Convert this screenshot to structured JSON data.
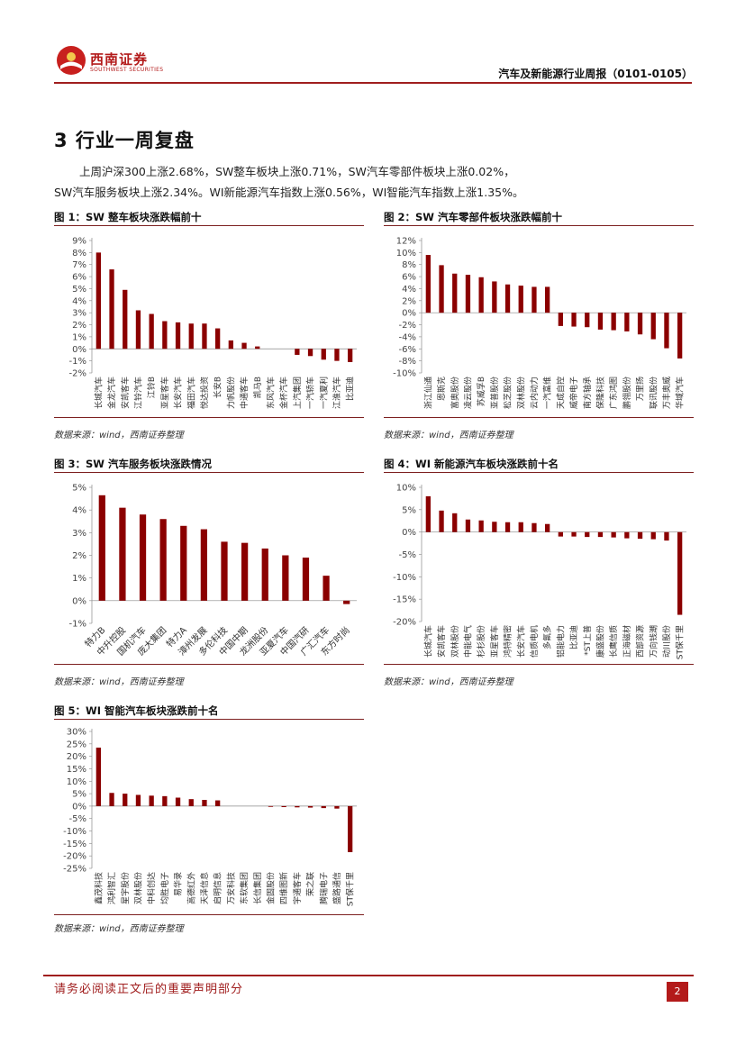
{
  "brand": {
    "name_cn": "西南证券",
    "name_en": "SOUTHWEST SECURITIES"
  },
  "header": {
    "title": "汽车及新能源行业周报（0101-0105）"
  },
  "section": {
    "heading": "3 行业一周复盘",
    "summary_line1": "上周沪深300上涨2.68%，SW整车板块上涨0.71%，SW汽车零部件板块上涨0.02%，",
    "summary_line2": "SW汽车服务板块上涨2.34%。WI新能源汽车指数上涨0.56%，WI智能汽车指数上涨1.35%。"
  },
  "figures": [
    {
      "title": "图 1：SW 整车板块涨跌幅前十",
      "source": "数据来源：wind，西南证券整理"
    },
    {
      "title": "图 2：SW 汽车零部件板块涨跌幅前十",
      "source": "数据来源：wind，西南证券整理"
    },
    {
      "title": "图 3：SW 汽车服务板块涨跌情况",
      "source": "数据来源：wind，西南证券整理"
    },
    {
      "title": "图 4：WI 新能源汽车板块涨跌前十名",
      "source": "数据来源：wind，西南证券整理"
    },
    {
      "title": "图 5：WI 智能汽车板块涨跌前十名",
      "source": "数据来源：wind，西南证券整理"
    }
  ],
  "colors": {
    "bar": "#8b0000",
    "accent": "#a01e1e"
  },
  "footer": {
    "note": "请务必阅读正文后的重要声明部分",
    "page": "2"
  },
  "chart_data": [
    {
      "type": "bar",
      "title": "图 1：SW 整车板块涨跌幅前十",
      "categories": [
        "长城汽车",
        "金龙汽车",
        "安凯客车",
        "江铃汽车",
        "江铃B",
        "亚星客车",
        "长安汽车",
        "福田汽车",
        "悦达投资",
        "长安B",
        "力帆股份",
        "中通客车",
        "凯马B",
        "东风汽车",
        "金杯汽车",
        "上汽集团",
        "一汽轿车",
        "一汽夏利",
        "江淮汽车",
        "比亚迪"
      ],
      "values": [
        8.0,
        6.6,
        4.9,
        3.2,
        2.9,
        2.3,
        2.2,
        2.1,
        2.1,
        1.7,
        0.7,
        0.5,
        0.2,
        0,
        0,
        -0.5,
        -0.6,
        -0.9,
        -1.0,
        -1.1
      ],
      "ylim": [
        -2,
        9
      ],
      "ticks": [
        -2,
        -1,
        0,
        1,
        2,
        3,
        4,
        5,
        6,
        7,
        8,
        9
      ],
      "tick_labels": [
        "-2%",
        "-1%",
        "0%",
        "1%",
        "2%",
        "3%",
        "4%",
        "5%",
        "6%",
        "7%",
        "8%",
        "9%"
      ]
    },
    {
      "type": "bar",
      "title": "图 2：SW 汽车零部件板块涨跌幅前十",
      "categories": [
        "浙江仙通",
        "恩斯克",
        "富奥股份",
        "凌云股份",
        "苏威孚B",
        "亚普股份",
        "松芝股份",
        "双林股份",
        "云内动力",
        "一汽富维",
        "天成自控",
        "威帝电子",
        "南方轴承",
        "保隆科技",
        "广东鸿图",
        "鹏翎股份",
        "万里扬",
        "联讯股份",
        "万丰奥威",
        "华域汽车"
      ],
      "values": [
        9.6,
        7.9,
        6.5,
        6.3,
        5.9,
        5.2,
        4.7,
        4.5,
        4.3,
        4.3,
        -2.2,
        -2.3,
        -2.4,
        -2.8,
        -2.9,
        -3.1,
        -3.6,
        -4.4,
        -5.9,
        -7.6
      ],
      "ylim": [
        -10,
        12
      ],
      "ticks": [
        -10,
        -8,
        -6,
        -4,
        -2,
        0,
        2,
        4,
        6,
        8,
        10,
        12
      ],
      "tick_labels": [
        "-10%",
        "-8%",
        "-6%",
        "-4%",
        "-2%",
        "0%",
        "2%",
        "4%",
        "6%",
        "8%",
        "10%",
        "12%"
      ]
    },
    {
      "type": "bar",
      "title": "图 3：SW 汽车服务板块涨跌情况",
      "categories": [
        "特力B",
        "中升控股",
        "国机汽车",
        "庞大集团",
        "特力A",
        "漳州发展",
        "多伦科技",
        "中国中期",
        "龙洲股份",
        "亚夏汽车",
        "中国汽研",
        "广汇汽车",
        "东方时尚"
      ],
      "values": [
        4.65,
        4.1,
        3.8,
        3.6,
        3.3,
        3.15,
        2.6,
        2.55,
        2.3,
        2.0,
        1.9,
        1.1,
        -0.15
      ],
      "ylim": [
        -1,
        5
      ],
      "ticks": [
        -1,
        0,
        1,
        2,
        3,
        4,
        5
      ],
      "tick_labels": [
        "-1%",
        "0%",
        "1%",
        "2%",
        "3%",
        "4%",
        "5%"
      ]
    },
    {
      "type": "bar",
      "title": "图 4：WI 新能源汽车板块涨跌前十名",
      "categories": [
        "长城汽车",
        "安凯客车",
        "双林股份",
        "中能电气",
        "杉杉股份",
        "亚星客车",
        "鸿特精密",
        "长安汽车",
        "信质电机",
        "多氟多",
        "铝能电力",
        "比亚迪",
        "*ST上普",
        "康盛股份",
        "长鹰信质",
        "正海磁材",
        "西部资源",
        "万向钱潮",
        "动川股份",
        "ST保千里"
      ],
      "values": [
        8.0,
        4.8,
        4.2,
        2.8,
        2.6,
        2.3,
        2.2,
        2.2,
        2.0,
        1.8,
        -1.0,
        -1.0,
        -1.1,
        -1.1,
        -1.2,
        -1.4,
        -1.5,
        -1.6,
        -1.9,
        -18.5
      ],
      "ylim": [
        -20,
        10
      ],
      "ticks": [
        -20,
        -15,
        -10,
        -5,
        0,
        5,
        10
      ],
      "tick_labels": [
        "-20%",
        "-15%",
        "-10%",
        "-5%",
        "0%",
        "5%",
        "10%"
      ]
    },
    {
      "type": "bar",
      "title": "图 5：WI 智能汽车板块涨跌前十名",
      "categories": [
        "鑫茂科技",
        "鸿利智汇",
        "星宇股份",
        "双林股份",
        "中科创达",
        "均胜电子",
        "易华录",
        "高德红外",
        "天泽信息",
        "启明信息",
        "万安科技",
        "东软集团",
        "长信集团",
        "金固股份",
        "四维图新",
        "宇通客车",
        "荣之联",
        "腾瑞电子",
        "盛路通信",
        "ST保千里"
      ],
      "values": [
        23.5,
        5.3,
        5.0,
        4.5,
        4.2,
        4.0,
        3.4,
        2.8,
        2.5,
        2.3,
        0,
        0,
        0,
        -0.3,
        -0.4,
        -0.5,
        -0.6,
        -0.8,
        -1.0,
        -18.5
      ],
      "ylim": [
        -25,
        30
      ],
      "ticks": [
        -25,
        -20,
        -15,
        -10,
        -5,
        0,
        5,
        10,
        15,
        20,
        25,
        30
      ],
      "tick_labels": [
        "-25%",
        "-20%",
        "-15%",
        "-10%",
        "-5%",
        "0%",
        "5%",
        "10%",
        "15%",
        "20%",
        "25%",
        "30%"
      ]
    }
  ]
}
